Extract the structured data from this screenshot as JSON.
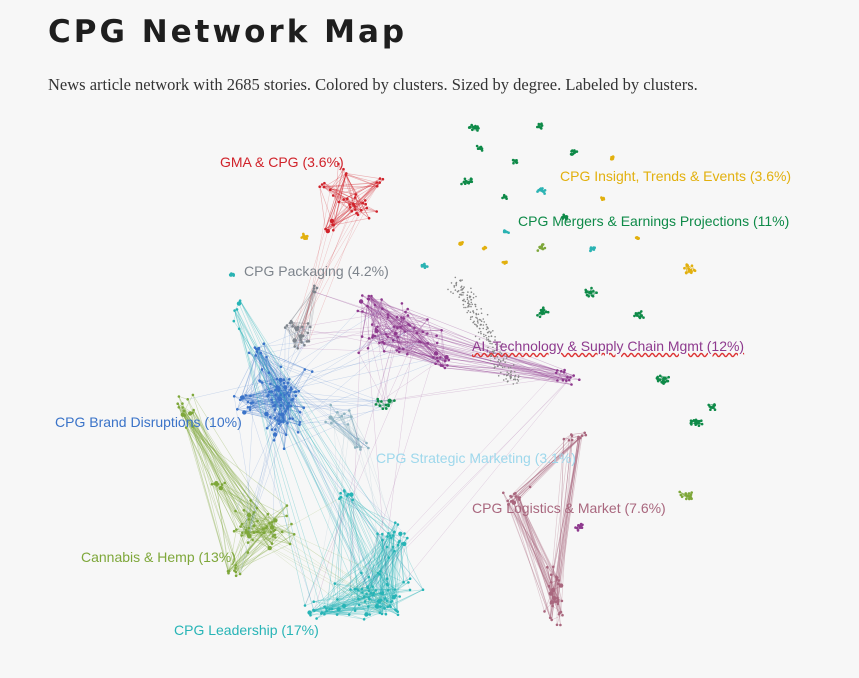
{
  "header": {
    "title": "CPG Network Map",
    "subtitle": "News article network with 2685 stories. Colored by clusters. Sized by degree. Labeled by clusters."
  },
  "clusters": {
    "gma": {
      "label": "GMA & CPG (3.6%)",
      "color": "#d0222a"
    },
    "insight": {
      "label": "CPG Insight, Trends & Events (3.6%)",
      "color": "#e2b00e"
    },
    "mergers": {
      "label": "CPG Mergers & Earnings Projections  (11%)",
      "color": "#0e8a48"
    },
    "packaging": {
      "label": "CPG Packaging  (4.2%)",
      "color": "#7d848c"
    },
    "ai": {
      "label": "AI, Technology & Supply Chain Mgmt  (12%)",
      "color": "#8e3a8e"
    },
    "brand": {
      "label": "CPG Brand Disruptions (10%)",
      "color": "#3a73c8"
    },
    "strategic": {
      "label": "CPG Strategic Marketing  (3.1%)",
      "color": "#9ed8ec"
    },
    "logistics": {
      "label": "CPG Logistics & Market (7.6%)",
      "color": "#a9677e"
    },
    "cannabis": {
      "label": "Cannabis & Hemp  (13%)",
      "color": "#7ea73a"
    },
    "leadership": {
      "label": "CPG Leadership  (17%)",
      "color": "#27b4b6"
    }
  },
  "styles": {
    "strategic_edge_color": "#8fb4c2",
    "teal_small_color": "#2bb3b3",
    "isolated_node_color": "#888888"
  }
}
